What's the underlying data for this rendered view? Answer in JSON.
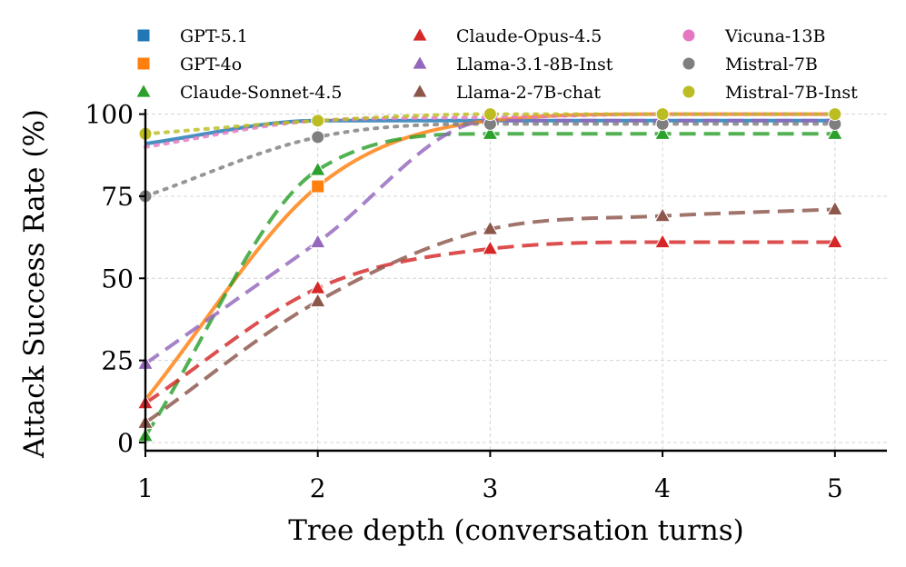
{
  "chart_data": {
    "type": "line",
    "title": "",
    "xlabel": "Tree depth (conversation turns)",
    "ylabel": "Attack Success Rate (%)",
    "x_ticks": [
      1,
      2,
      3,
      4,
      5
    ],
    "y_ticks": [
      0,
      25,
      50,
      75,
      100
    ],
    "xlim": [
      1,
      5.3
    ],
    "ylim": [
      -2,
      102
    ],
    "grid": true,
    "legend_position": "top",
    "series": [
      {
        "name": "GPT-5.1",
        "color": "#1f77b4",
        "dash": "solid",
        "marker": "square",
        "x": [
          1,
          2,
          3,
          4,
          5
        ],
        "y": [
          91,
          98,
          98,
          98,
          98
        ],
        "marked": []
      },
      {
        "name": "GPT-4o",
        "color": "#ff7f0e",
        "dash": "solid",
        "marker": "square",
        "x": [
          1,
          2,
          3,
          4,
          5
        ],
        "y": [
          13,
          78,
          98,
          100,
          100
        ],
        "marked": [
          2
        ]
      },
      {
        "name": "Claude-Sonnet-4.5",
        "color": "#2ca02c",
        "dash": "dashed",
        "marker": "triangle",
        "x": [
          1,
          2,
          3,
          4,
          5
        ],
        "y": [
          2,
          83,
          94,
          94,
          94
        ],
        "marked": [
          1,
          2,
          3,
          4,
          5
        ]
      },
      {
        "name": "Claude-Opus-4.5",
        "color": "#d62728",
        "dash": "dashed",
        "marker": "triangle",
        "x": [
          1,
          2,
          3,
          4,
          5
        ],
        "y": [
          12,
          47,
          59,
          61,
          61
        ],
        "marked": [
          1,
          2,
          3,
          4,
          5
        ]
      },
      {
        "name": "Llama-3.1-8B-Inst",
        "color": "#9467bd",
        "dash": "dashed",
        "marker": "triangle",
        "x": [
          1,
          2,
          3,
          4,
          5
        ],
        "y": [
          24,
          61,
          98,
          98,
          98
        ],
        "marked": [
          1,
          2,
          3,
          4,
          5
        ]
      },
      {
        "name": "Llama-2-7B-chat",
        "color": "#8c564b",
        "dash": "dashed",
        "marker": "triangle",
        "x": [
          1,
          2,
          3,
          4,
          5
        ],
        "y": [
          6,
          43,
          65,
          69,
          71
        ],
        "marked": [
          1,
          2,
          3,
          4,
          5
        ]
      },
      {
        "name": "Vicuna-13B",
        "color": "#e377c2",
        "dash": "dotted",
        "marker": "circle",
        "x": [
          1,
          2,
          3,
          4,
          5
        ],
        "y": [
          90,
          98,
          99,
          100,
          100
        ],
        "marked": []
      },
      {
        "name": "Mistral-7B",
        "color": "#7f7f7f",
        "dash": "dotted",
        "marker": "circle",
        "x": [
          1,
          2,
          3,
          4,
          5
        ],
        "y": [
          75,
          93,
          97,
          97,
          97
        ],
        "marked": [
          1,
          2,
          3,
          4,
          5
        ]
      },
      {
        "name": "Mistral-7B-Inst",
        "color": "#bcbd22",
        "dash": "dotted",
        "marker": "circle",
        "x": [
          1,
          2,
          3,
          4,
          5
        ],
        "y": [
          94,
          98,
          100,
          100,
          100
        ],
        "marked": [
          1,
          2,
          3,
          4,
          5
        ]
      }
    ]
  }
}
